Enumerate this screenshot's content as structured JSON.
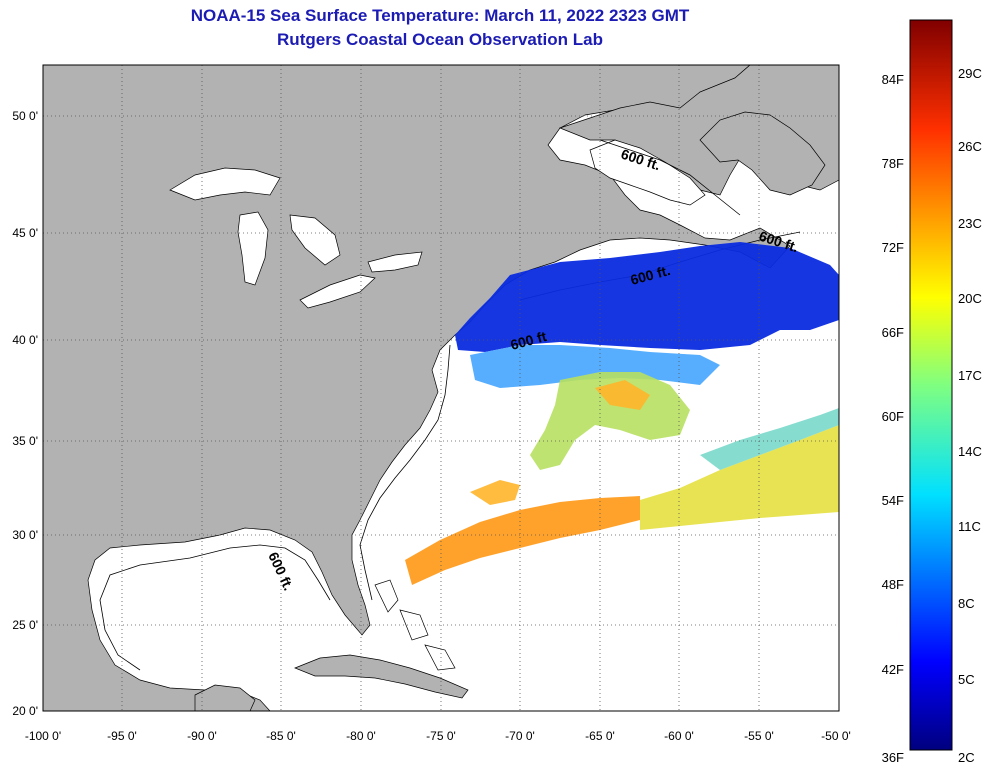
{
  "title": {
    "line1": "NOAA-15 Sea Surface Temperature:  March 11, 2022 2323 GMT",
    "line2": "Rutgers Coastal Ocean Observation Lab"
  },
  "map": {
    "lon_range": [
      -100,
      -50
    ],
    "lat_range": [
      20,
      52.5
    ],
    "lon_ticks": [
      "-100 0'",
      "-95 0'",
      "-90 0'",
      "-85 0'",
      "-80 0'",
      "-75 0'",
      "-70 0'",
      "-65 0'",
      "-60 0'",
      "-55 0'",
      "-50 0'"
    ],
    "lat_ticks": [
      "50 0'",
      "45 0'",
      "40 0'",
      "35 0'",
      "30 0'",
      "25 0'",
      "20 0'"
    ],
    "contour_labels": [
      "600 ft.",
      "600 ft.",
      "600 ft.",
      "600 ft",
      "600 ft."
    ],
    "colors": {
      "land": "#b2b2b2",
      "ocean": "#ffffff",
      "grid": "#555555"
    }
  },
  "colorbar": {
    "fahrenheit_labels": [
      "84F",
      "78F",
      "72F",
      "66F",
      "60F",
      "54F",
      "48F",
      "42F",
      "36F"
    ],
    "celsius_labels": [
      "29C",
      "26C",
      "23C",
      "20C",
      "17C",
      "14C",
      "11C",
      "8C",
      "5C",
      "2C"
    ],
    "colormap": "jet",
    "range_celsius": [
      2,
      31
    ]
  }
}
